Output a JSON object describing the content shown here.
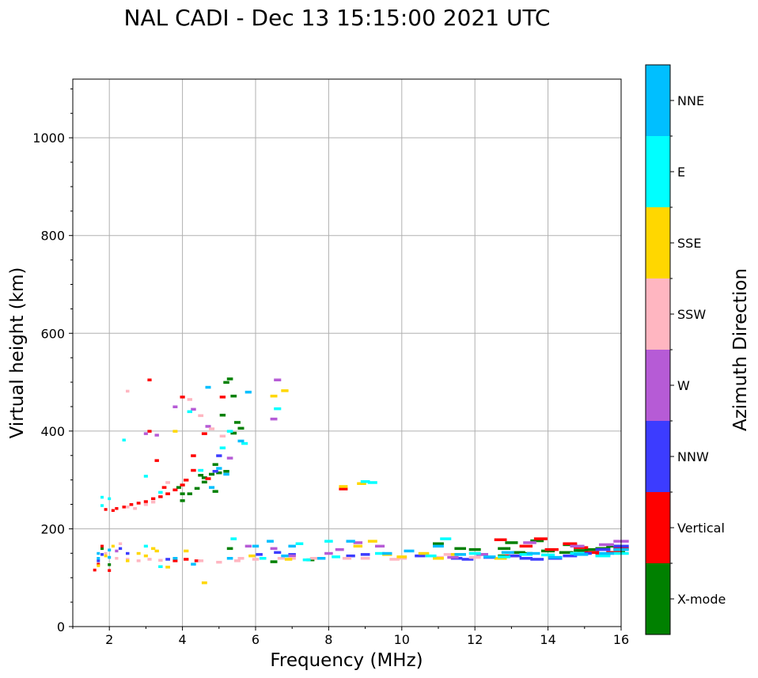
{
  "chart_data": {
    "type": "scatter",
    "title": "NAL CADI - Dec 13 15:15:00 2021 UTC",
    "xlabel": "Frequency (MHz)",
    "ylabel": "Virtual height (km)",
    "xlim": [
      1,
      16
    ],
    "ylim": [
      0,
      1120
    ],
    "x_ticks": [
      2,
      4,
      6,
      8,
      10,
      12,
      14,
      16
    ],
    "x_tick_labels": [
      "2",
      "4",
      "6",
      "8",
      "10",
      "12",
      "14",
      "16"
    ],
    "y_ticks": [
      0,
      200,
      400,
      600,
      800,
      1000
    ],
    "y_tick_labels": [
      "0",
      "200",
      "400",
      "600",
      "800",
      "1000"
    ],
    "grid": true,
    "colorbar": {
      "label": "Azimuth Direction",
      "categories": [
        "X-mode",
        "Vertical",
        "NNW",
        "W",
        "SSW",
        "SSE",
        "E",
        "NNE"
      ],
      "colors": [
        "#008000",
        "#ff0000",
        "#3c3cff",
        "#b65bd6",
        "#ffb6c1",
        "#ffd700",
        "#00ffff",
        "#00bfff"
      ]
    },
    "series": [
      {
        "name": "X-mode",
        "points": [
          [
            4.0,
            258
          ],
          [
            4.2,
            272
          ],
          [
            4.4,
            283
          ],
          [
            4.6,
            305
          ],
          [
            4.8,
            312
          ],
          [
            5.0,
            315
          ],
          [
            5.2,
            318
          ],
          [
            4.9,
            332
          ],
          [
            5.4,
            472
          ],
          [
            5.3,
            507
          ],
          [
            5.5,
            418
          ],
          [
            5.4,
            396
          ],
          [
            5.6,
            406
          ],
          [
            5.1,
            433
          ],
          [
            4.9,
            277
          ],
          [
            4.6,
            296
          ],
          [
            5.3,
            160
          ],
          [
            6.5,
            133
          ],
          [
            7.5,
            137
          ],
          [
            11.0,
            170
          ],
          [
            11.6,
            160
          ],
          [
            12.0,
            158
          ],
          [
            12.8,
            160
          ],
          [
            12.8,
            145
          ],
          [
            13.2,
            152
          ],
          [
            13.4,
            150
          ],
          [
            14.0,
            155
          ],
          [
            14.5,
            152
          ],
          [
            14.9,
            156
          ],
          [
            15.2,
            158
          ],
          [
            15.5,
            160
          ],
          [
            15.8,
            165
          ],
          [
            15.9,
            152
          ],
          [
            13.0,
            172
          ],
          [
            13.7,
            176
          ],
          [
            14.6,
            168
          ],
          [
            2.0,
            127
          ],
          [
            1.8,
            160
          ],
          [
            4.0,
            272
          ],
          [
            3.9,
            285
          ],
          [
            4.5,
            310
          ],
          [
            5.2,
            500
          ]
        ]
      },
      {
        "name": "Vertical",
        "points": [
          [
            1.9,
            240
          ],
          [
            2.1,
            238
          ],
          [
            2.2,
            242
          ],
          [
            2.4,
            245
          ],
          [
            2.6,
            250
          ],
          [
            2.8,
            253
          ],
          [
            3.0,
            256
          ],
          [
            3.2,
            262
          ],
          [
            3.4,
            266
          ],
          [
            3.6,
            272
          ],
          [
            3.8,
            280
          ],
          [
            4.0,
            290
          ],
          [
            4.1,
            300
          ],
          [
            4.3,
            320
          ],
          [
            4.3,
            350
          ],
          [
            4.0,
            470
          ],
          [
            3.1,
            505
          ],
          [
            3.1,
            400
          ],
          [
            4.6,
            395
          ],
          [
            4.7,
            303
          ],
          [
            5.1,
            470
          ],
          [
            8.4,
            282
          ],
          [
            13.0,
            145
          ],
          [
            13.4,
            165
          ],
          [
            13.8,
            180
          ],
          [
            14.1,
            158
          ],
          [
            14.6,
            170
          ],
          [
            14.9,
            162
          ],
          [
            15.2,
            152
          ],
          [
            15.5,
            148
          ],
          [
            15.8,
            152
          ],
          [
            16.0,
            160
          ],
          [
            12.7,
            178
          ],
          [
            3.8,
            135
          ],
          [
            4.4,
            135
          ],
          [
            2.0,
            115
          ],
          [
            1.8,
            165
          ],
          [
            3.3,
            340
          ],
          [
            1.7,
            128
          ],
          [
            1.6,
            116
          ],
          [
            4.1,
            138
          ],
          [
            3.5,
            285
          ]
        ]
      },
      {
        "name": "NNW",
        "points": [
          [
            10.5,
            145
          ],
          [
            11.5,
            140
          ],
          [
            12.2,
            148
          ],
          [
            13.1,
            145
          ],
          [
            13.4,
            140
          ],
          [
            13.7,
            138
          ],
          [
            14.2,
            140
          ],
          [
            14.6,
            145
          ],
          [
            15.0,
            150
          ],
          [
            15.5,
            158
          ],
          [
            16.0,
            165
          ],
          [
            6.1,
            148
          ],
          [
            7.7,
            140
          ],
          [
            8.6,
            145
          ],
          [
            5.0,
            350
          ],
          [
            1.8,
            148
          ],
          [
            1.7,
            135
          ],
          [
            4.9,
            318
          ],
          [
            2.5,
            150
          ],
          [
            9.0,
            148
          ],
          [
            2.3,
            160
          ],
          [
            3.6,
            138
          ],
          [
            6.6,
            152
          ],
          [
            12.4,
            142
          ],
          [
            11.8,
            138
          ],
          [
            7.0,
            148
          ]
        ]
      },
      {
        "name": "W",
        "points": [
          [
            6.6,
            505
          ],
          [
            6.5,
            425
          ],
          [
            5.3,
            345
          ],
          [
            4.3,
            445
          ],
          [
            3.3,
            392
          ],
          [
            3.8,
            450
          ],
          [
            8.0,
            150
          ],
          [
            8.8,
            172
          ],
          [
            9.4,
            165
          ],
          [
            6.5,
            160
          ],
          [
            7.0,
            145
          ],
          [
            12.2,
            148
          ],
          [
            13.5,
            172
          ],
          [
            14.8,
            165
          ],
          [
            15.6,
            168
          ],
          [
            3.0,
            395
          ],
          [
            4.7,
            410
          ],
          [
            2.2,
            155
          ],
          [
            5.8,
            165
          ],
          [
            8.3,
            158
          ],
          [
            11.4,
            142
          ],
          [
            16.0,
            175
          ]
        ]
      },
      {
        "name": "SSW",
        "points": [
          [
            2.5,
            482
          ],
          [
            2.5,
            245
          ],
          [
            2.7,
            242
          ],
          [
            3.0,
            250
          ],
          [
            3.2,
            255
          ],
          [
            2.2,
            140
          ],
          [
            2.5,
            138
          ],
          [
            2.8,
            135
          ],
          [
            3.1,
            138
          ],
          [
            3.4,
            136
          ],
          [
            4.5,
            135
          ],
          [
            5.0,
            132
          ],
          [
            5.5,
            135
          ],
          [
            6.0,
            138
          ],
          [
            7.0,
            140
          ],
          [
            7.6,
            140
          ],
          [
            8.5,
            140
          ],
          [
            9.0,
            140
          ],
          [
            10.0,
            140
          ],
          [
            11.0,
            142
          ],
          [
            12.0,
            142
          ],
          [
            4.8,
            405
          ],
          [
            5.1,
            390
          ],
          [
            4.5,
            432
          ],
          [
            1.9,
            150
          ],
          [
            2.3,
            170
          ],
          [
            4.2,
            465
          ],
          [
            3.6,
            295
          ],
          [
            6.7,
            140
          ],
          [
            9.8,
            138
          ],
          [
            11.3,
            148
          ],
          [
            5.6,
            140
          ]
        ]
      },
      {
        "name": "SSE",
        "points": [
          [
            3.8,
            400
          ],
          [
            6.5,
            472
          ],
          [
            6.8,
            483
          ],
          [
            8.4,
            287
          ],
          [
            8.9,
            293
          ],
          [
            9.2,
            175
          ],
          [
            8.8,
            165
          ],
          [
            10.0,
            143
          ],
          [
            11.0,
            140
          ],
          [
            12.7,
            140
          ],
          [
            4.6,
            90
          ],
          [
            3.6,
            122
          ],
          [
            2.8,
            150
          ],
          [
            3.0,
            145
          ],
          [
            3.3,
            155
          ],
          [
            4.1,
            155
          ],
          [
            2.5,
            135
          ],
          [
            1.7,
            125
          ],
          [
            1.9,
            145
          ],
          [
            2.1,
            165
          ],
          [
            6.9,
            138
          ],
          [
            9.6,
            148
          ],
          [
            10.6,
            150
          ],
          [
            11.5,
            148
          ],
          [
            3.2,
            160
          ],
          [
            5.9,
            145
          ]
        ]
      },
      {
        "name": "E",
        "points": [
          [
            2.4,
            382
          ],
          [
            3.0,
            308
          ],
          [
            3.4,
            275
          ],
          [
            4.2,
            440
          ],
          [
            5.1,
            366
          ],
          [
            5.7,
            375
          ],
          [
            5.3,
            400
          ],
          [
            6.6,
            446
          ],
          [
            9.2,
            295
          ],
          [
            9.0,
            297
          ],
          [
            11.2,
            180
          ],
          [
            12.0,
            150
          ],
          [
            12.8,
            143
          ],
          [
            13.4,
            148
          ],
          [
            14.0,
            147
          ],
          [
            14.8,
            150
          ],
          [
            15.5,
            145
          ],
          [
            16.0,
            150
          ],
          [
            8.0,
            175
          ],
          [
            7.2,
            170
          ],
          [
            6.2,
            140
          ],
          [
            1.8,
            265
          ],
          [
            2.0,
            262
          ],
          [
            1.8,
            248
          ],
          [
            3.4,
            123
          ],
          [
            4.5,
            320
          ],
          [
            9.4,
            150
          ],
          [
            10.8,
            145
          ],
          [
            8.2,
            143
          ],
          [
            3.0,
            165
          ],
          [
            7.4,
            137
          ],
          [
            5.4,
            180
          ]
        ]
      },
      {
        "name": "NNE",
        "points": [
          [
            4.7,
            490
          ],
          [
            5.8,
            480
          ],
          [
            5.0,
            324
          ],
          [
            5.2,
            312
          ],
          [
            4.8,
            285
          ],
          [
            5.6,
            380
          ],
          [
            6.0,
            165
          ],
          [
            6.4,
            175
          ],
          [
            7.0,
            165
          ],
          [
            7.8,
            140
          ],
          [
            8.6,
            175
          ],
          [
            9.6,
            150
          ],
          [
            11.0,
            165
          ],
          [
            11.6,
            148
          ],
          [
            12.4,
            143
          ],
          [
            13.6,
            150
          ],
          [
            14.2,
            142
          ],
          [
            14.9,
            148
          ],
          [
            15.6,
            150
          ],
          [
            16.0,
            158
          ],
          [
            2.0,
            142
          ],
          [
            2.0,
            157
          ],
          [
            1.7,
            150
          ],
          [
            1.7,
            140
          ],
          [
            4.3,
            128
          ],
          [
            3.8,
            140
          ],
          [
            10.2,
            155
          ],
          [
            12.9,
            152
          ],
          [
            5.3,
            140
          ],
          [
            6.8,
            145
          ]
        ]
      }
    ]
  }
}
